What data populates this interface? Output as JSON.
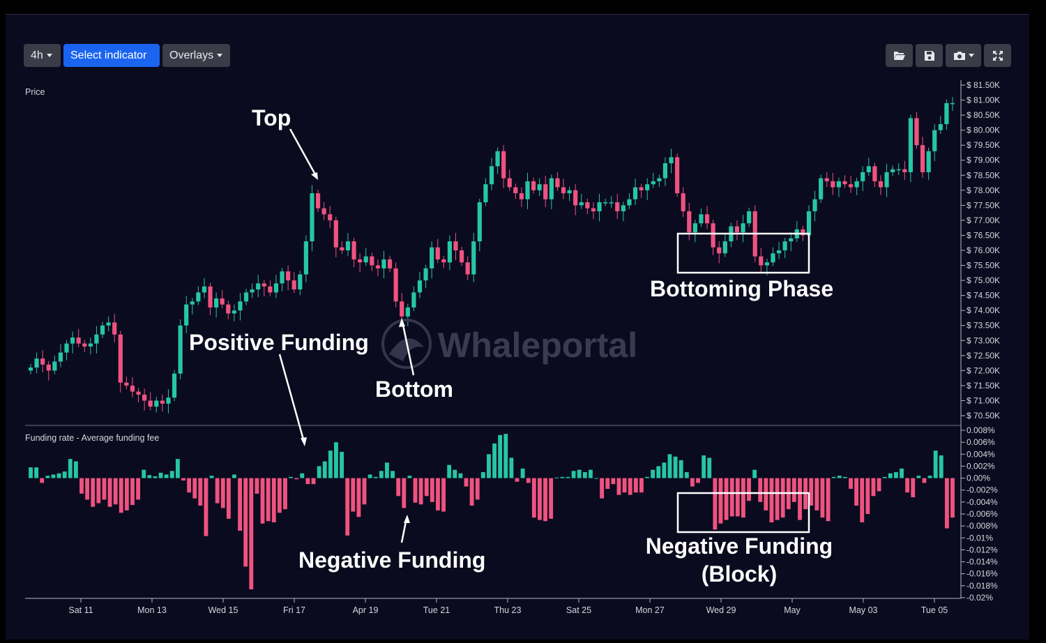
{
  "toolbar": {
    "interval_label": "4h",
    "indicator_label": "Select indicator",
    "overlays_label": "Overlays"
  },
  "icons": [
    "folder-open-icon",
    "save-icon",
    "camera-icon",
    "expand-icon"
  ],
  "watermark": "Whaleportal",
  "price_panel": {
    "title": "Price",
    "y_ticks": [
      "$ 81.50K",
      "$ 81.00K",
      "$ 80.50K",
      "$ 80.00K",
      "$ 79.50K",
      "$ 79.00K",
      "$ 78.50K",
      "$ 78.00K",
      "$ 77.50K",
      "$ 77.00K",
      "$ 76.50K",
      "$ 76.00K",
      "$ 75.50K",
      "$ 75.00K",
      "$ 74.50K",
      "$ 74.00K",
      "$ 73.50K",
      "$ 73.00K",
      "$ 72.50K",
      "$ 72.00K",
      "$ 71.50K",
      "$ 71.00K",
      "$ 70.50K"
    ]
  },
  "funding_panel": {
    "title": "Funding rate - Average funding fee",
    "y_ticks": [
      "0.008%",
      "0.006%",
      "0.004%",
      "0.002%",
      "0.00%",
      "-0.002%",
      "-0.004%",
      "-0.006%",
      "-0.008%",
      "-0.01%",
      "-0.012%",
      "-0.014%",
      "-0.016%",
      "-0.018%",
      "-0.02%"
    ]
  },
  "x_ticks": [
    "Sat 11",
    "Mon 13",
    "Wed 15",
    "Fri 17",
    "Apr 19",
    "Tue 21",
    "Thu 23",
    "Sat 25",
    "Mon 27",
    "Wed 29",
    "May",
    "May 03",
    "Tue 05"
  ],
  "annotations": {
    "top": "Top",
    "positive_funding": "Positive Funding",
    "bottom": "Bottom",
    "bottoming_phase": "Bottoming Phase",
    "negative_funding": "Negative Funding",
    "negative_funding_block_line1": "Negative Funding",
    "negative_funding_block_line2": "(Block)"
  },
  "colors": {
    "up": "#26c6a6",
    "down": "#ef5380",
    "background": "#0b0b1f",
    "primary_button": "#1a64f0"
  },
  "chart_data": {
    "type": "candlestick",
    "interval": "4h",
    "close_prices_k": [
      72.1,
      72.4,
      72.2,
      72.0,
      72.3,
      72.6,
      72.9,
      73.1,
      72.9,
      72.8,
      72.9,
      73.2,
      73.5,
      73.6,
      73.2,
      71.6,
      71.5,
      71.3,
      71.2,
      71.0,
      70.8,
      71.0,
      70.9,
      71.1,
      71.9,
      73.5,
      74.2,
      74.3,
      74.6,
      74.8,
      74.1,
      74.4,
      74.2,
      73.9,
      74.0,
      74.3,
      74.6,
      74.7,
      74.9,
      74.8,
      74.6,
      74.9,
      75.3,
      75.0,
      74.7,
      75.2,
      76.3,
      77.9,
      77.4,
      77.2,
      77.0,
      76.1,
      76.0,
      76.3,
      75.7,
      75.6,
      75.8,
      75.5,
      75.4,
      75.7,
      75.4,
      74.3,
      73.8,
      74.1,
      74.6,
      75.0,
      75.4,
      76.1,
      75.7,
      75.6,
      76.3,
      76.0,
      75.6,
      75.2,
      76.3,
      77.6,
      78.2,
      78.8,
      79.3,
      78.4,
      78.1,
      77.9,
      77.7,
      78.3,
      78.0,
      78.2,
      77.7,
      78.4,
      78.1,
      77.9,
      78.0,
      77.5,
      77.6,
      77.4,
      77.3,
      77.6,
      77.6,
      77.6,
      77.3,
      77.5,
      77.7,
      78.1,
      78.0,
      78.2,
      78.3,
      78.4,
      78.9,
      79.1,
      77.9,
      77.3,
      76.6,
      76.9,
      77.2,
      76.9,
      76.1,
      75.9,
      76.3,
      76.8,
      76.6,
      76.9,
      77.3,
      75.8,
      75.5,
      75.6,
      75.9,
      76.0,
      76.3,
      76.4,
      76.7,
      76.5,
      77.3,
      77.7,
      78.4,
      78.3,
      78.1,
      78.3,
      78.2,
      78.1,
      78.3,
      78.6,
      78.8,
      78.3,
      78.1,
      78.6,
      78.7,
      78.7,
      78.6,
      80.4,
      79.5,
      78.6,
      79.3,
      80.0,
      80.2,
      80.9,
      80.9
    ],
    "funding_rate_pct": [
      0.0018,
      0.0018,
      -0.0008,
      0.0004,
      0.0006,
      0.0008,
      0.0011,
      0.0032,
      0.0028,
      -0.0026,
      -0.0036,
      -0.0048,
      -0.0042,
      -0.0036,
      -0.0048,
      -0.0044,
      -0.0058,
      -0.0054,
      -0.0045,
      -0.0036,
      0.0014,
      0.0005,
      0.0003,
      0.0009,
      0.0006,
      0.0012,
      0.0032,
      -0.0004,
      -0.0024,
      -0.0034,
      -0.0046,
      -0.0097,
      0.0004,
      -0.0042,
      -0.005,
      -0.0068,
      0.0006,
      -0.0088,
      -0.0148,
      -0.0186,
      -0.0026,
      -0.0076,
      -0.0072,
      -0.0074,
      -0.0058,
      -0.0052,
      0.0002,
      -0.0002,
      0.0008,
      -0.001,
      -0.001,
      0.002,
      0.0028,
      0.0046,
      0.006,
      0.0044,
      -0.0096,
      -0.0056,
      -0.0065,
      -0.0044,
      0.0006,
      0.0002,
      0.0012,
      0.0026,
      0.0012,
      -0.003,
      -0.005,
      0.0004,
      -0.0041,
      -0.0044,
      -0.003,
      -0.004,
      -0.0054,
      -0.0056,
      0.0022,
      0.0014,
      0.0008,
      -0.0014,
      -0.0046,
      -0.0036,
      0.001,
      0.004,
      0.0058,
      0.0072,
      0.0074,
      0.0034,
      -0.0006,
      0.0016,
      -0.0008,
      -0.0066,
      -0.007,
      -0.0072,
      -0.0068,
      0.0001,
      0.0002,
      0.0002,
      0.0012,
      0.0014,
      0.001,
      0.0014,
      0.0,
      -0.0034,
      -0.0018,
      -0.001,
      -0.0028,
      -0.0024,
      -0.0028,
      -0.0024,
      -0.0024,
      0.0002,
      0.0014,
      0.002,
      0.0026,
      0.004,
      0.0036,
      0.003,
      0.001,
      -0.0014,
      -0.0008,
      0.0038,
      0.0034,
      -0.0086,
      -0.0076,
      -0.007,
      -0.0064,
      -0.0064,
      -0.0066,
      -0.0038,
      0.0014,
      -0.004,
      -0.0054,
      -0.0074,
      -0.007,
      -0.0066,
      -0.0052,
      -0.004,
      -0.007,
      -0.0052,
      -0.0046,
      -0.0054,
      -0.0066,
      -0.0072,
      0.0002,
      0.0004,
      0.0002,
      -0.0018,
      -0.0046,
      -0.0074,
      -0.006,
      -0.003,
      -0.0022,
      0.0002,
      0.0008,
      0.001,
      0.0016,
      -0.0024,
      -0.0032,
      0.0004,
      -0.0008,
      0.0004,
      0.0046,
      0.0038,
      -0.0084,
      -0.0066
    ]
  }
}
